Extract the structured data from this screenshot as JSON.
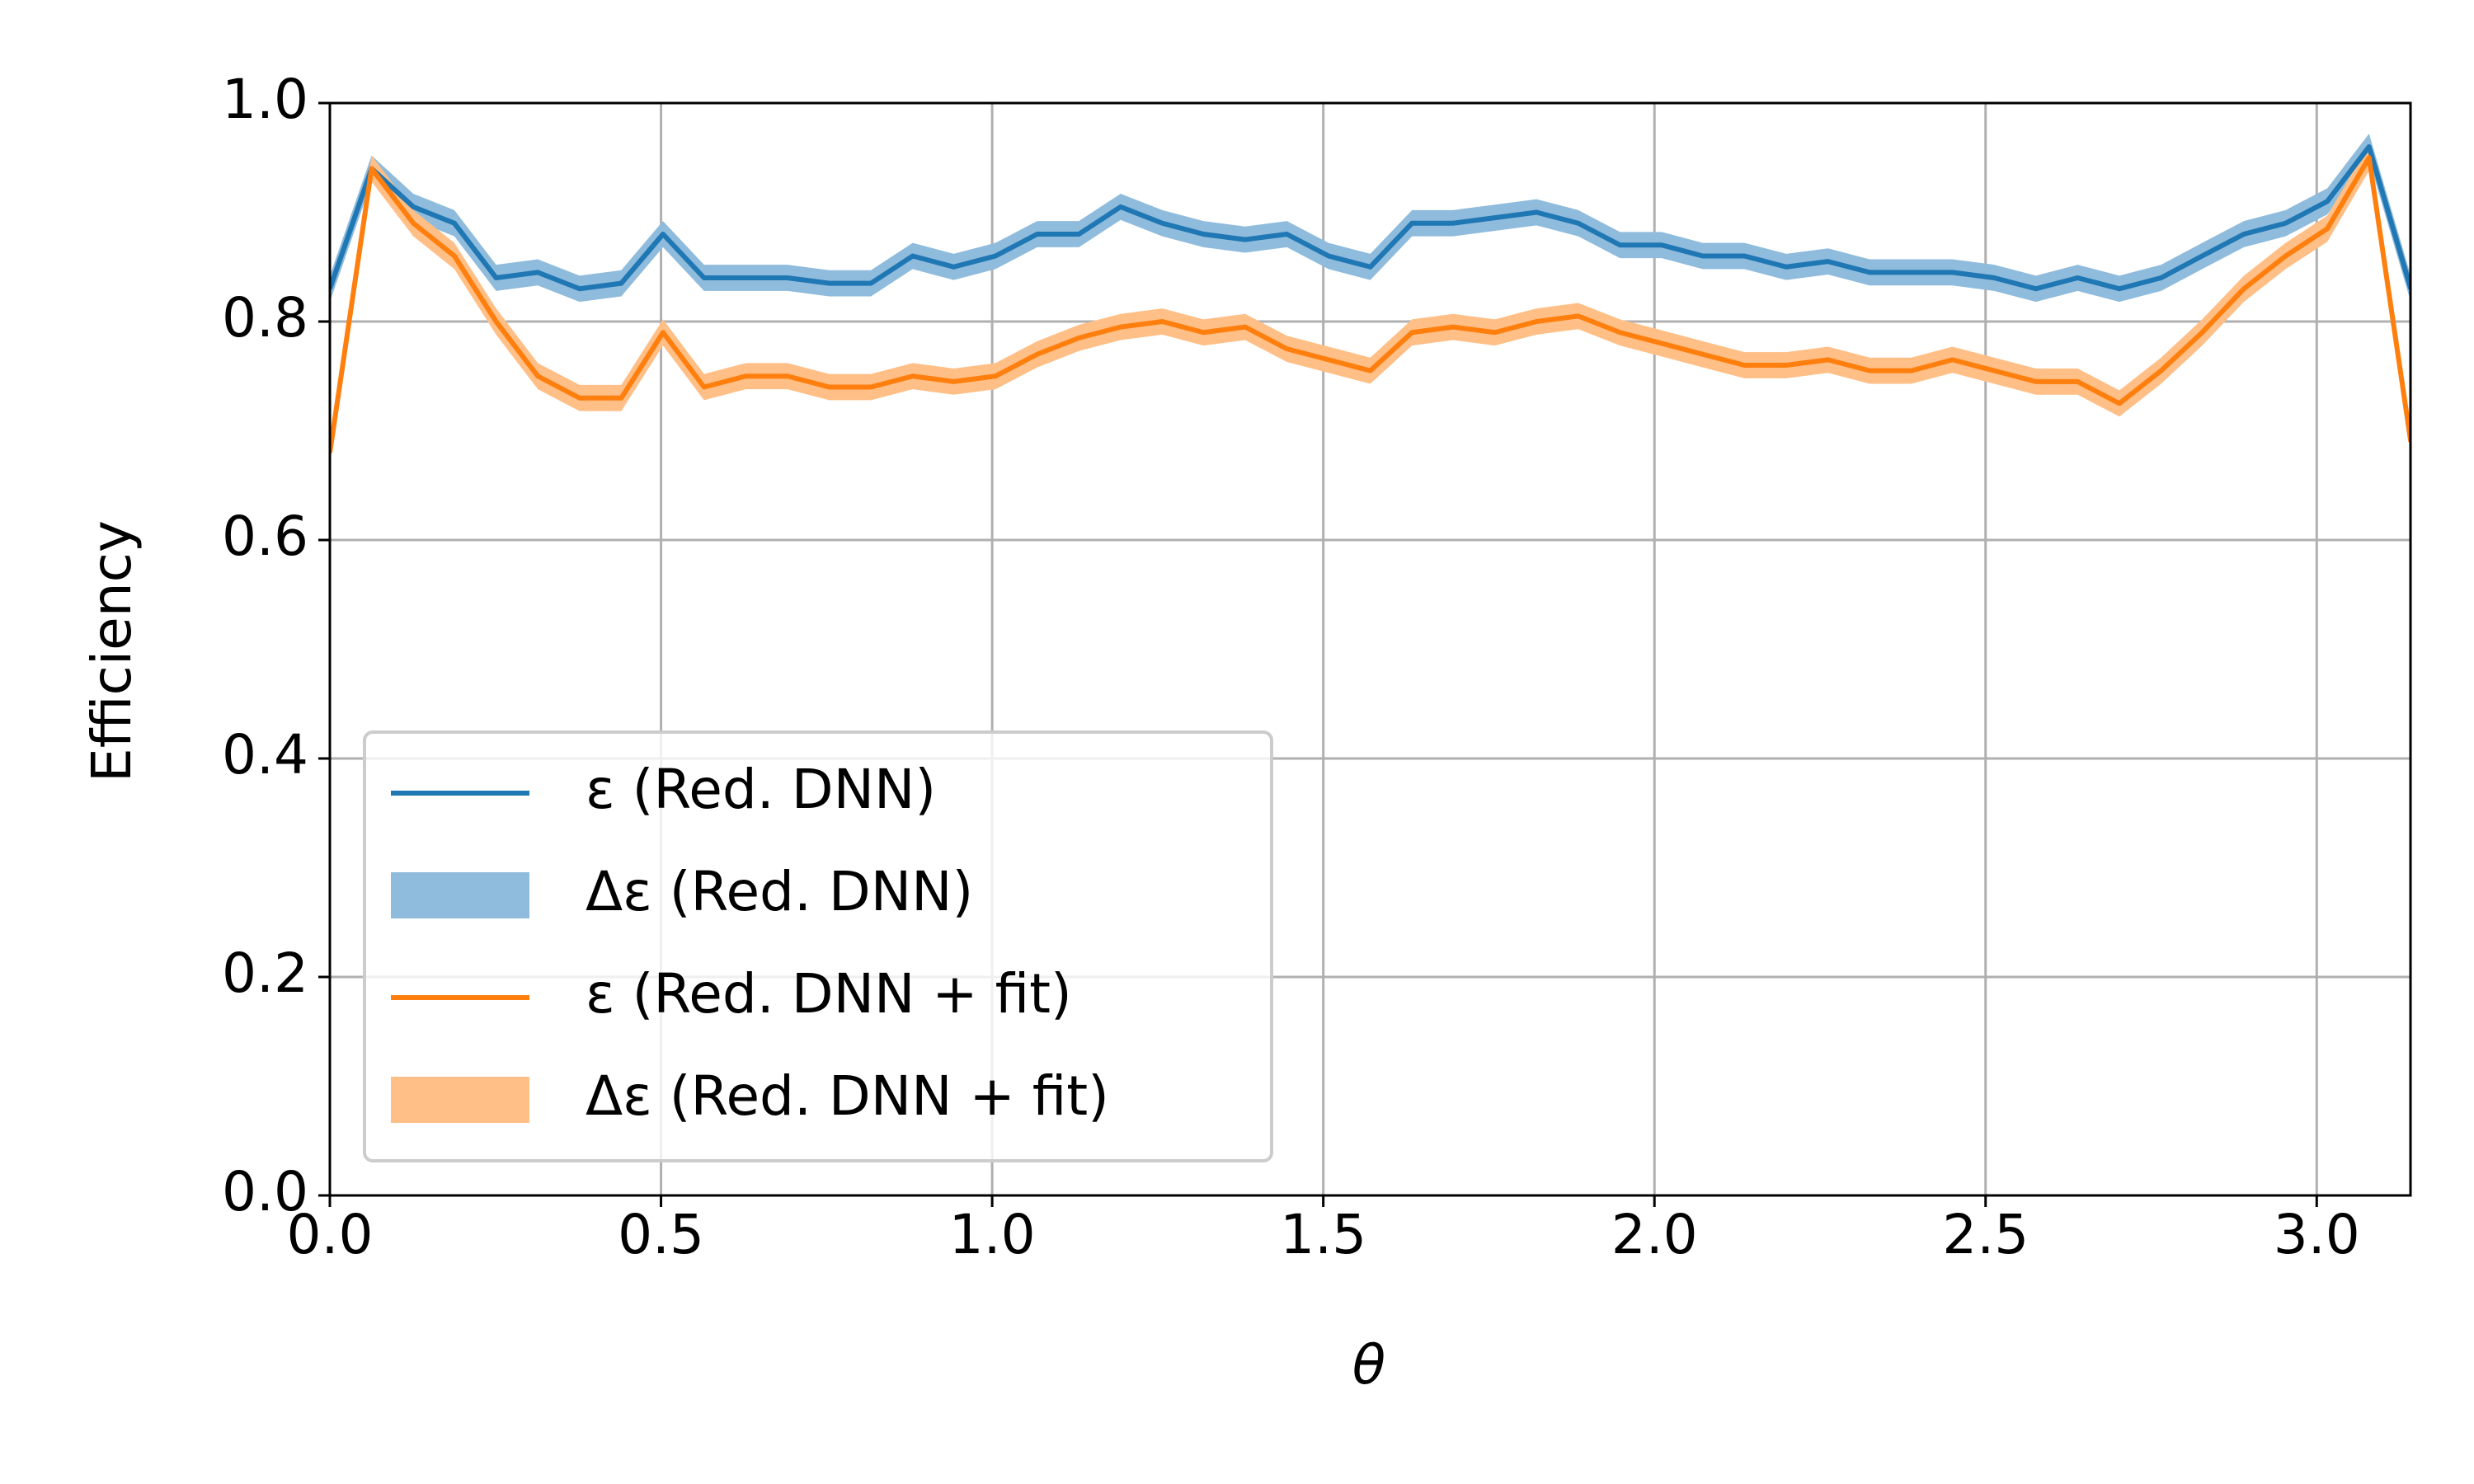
{
  "chart_data": {
    "type": "line",
    "xlabel": "θ",
    "ylabel": "Efficiency",
    "x": [
      0,
      0.063,
      0.126,
      0.188,
      0.251,
      0.314,
      0.377,
      0.44,
      0.503,
      0.565,
      0.628,
      0.691,
      0.754,
      0.817,
      0.88,
      0.942,
      1.005,
      1.068,
      1.131,
      1.194,
      1.257,
      1.319,
      1.382,
      1.445,
      1.508,
      1.571,
      1.634,
      1.696,
      1.759,
      1.822,
      1.885,
      1.948,
      2.011,
      2.073,
      2.136,
      2.199,
      2.262,
      2.325,
      2.388,
      2.45,
      2.513,
      2.576,
      2.639,
      2.702,
      2.765,
      2.827,
      2.89,
      2.953,
      3.016,
      3.079,
      3.142
    ],
    "series": [
      {
        "name": "ε (Red. DNN)",
        "color": "#1f77b4",
        "band_name": "Δε (Red. DNN)",
        "band_color": "#8fbbdc",
        "error": 0.012,
        "values": [
          0.83,
          0.94,
          0.905,
          0.89,
          0.84,
          0.845,
          0.83,
          0.835,
          0.88,
          0.84,
          0.84,
          0.84,
          0.835,
          0.835,
          0.86,
          0.85,
          0.86,
          0.88,
          0.88,
          0.905,
          0.89,
          0.88,
          0.875,
          0.88,
          0.86,
          0.85,
          0.89,
          0.89,
          0.895,
          0.9,
          0.89,
          0.87,
          0.87,
          0.86,
          0.86,
          0.85,
          0.855,
          0.845,
          0.845,
          0.845,
          0.84,
          0.83,
          0.84,
          0.83,
          0.84,
          0.86,
          0.88,
          0.89,
          0.91,
          0.96,
          0.83
        ]
      },
      {
        "name": "ε (Red. DNN + fit)",
        "color": "#ff7f0e",
        "band_name": "Δε (Red. DNN + fit)",
        "band_color": "#ffbf86",
        "error": 0.012,
        "values": [
          0.68,
          0.94,
          0.89,
          0.86,
          0.8,
          0.75,
          0.73,
          0.73,
          0.79,
          0.74,
          0.75,
          0.75,
          0.74,
          0.74,
          0.75,
          0.745,
          0.75,
          0.77,
          0.785,
          0.795,
          0.8,
          0.79,
          0.795,
          0.775,
          0.765,
          0.755,
          0.79,
          0.795,
          0.79,
          0.8,
          0.805,
          0.79,
          0.78,
          0.77,
          0.76,
          0.76,
          0.765,
          0.755,
          0.755,
          0.765,
          0.755,
          0.745,
          0.745,
          0.725,
          0.755,
          0.79,
          0.83,
          0.86,
          0.885,
          0.95,
          0.69
        ]
      }
    ],
    "xlim": [
      0,
      3.1416
    ],
    "ylim": [
      0,
      1
    ],
    "xticks": [
      {
        "value": 0,
        "label": "0.0"
      },
      0.5,
      {
        "value": 1,
        "label": "1.0"
      },
      1.5,
      {
        "value": 2,
        "label": "2.0"
      },
      2.5,
      {
        "value": 3,
        "label": "3.0"
      }
    ],
    "yticks": [
      {
        "value": 0,
        "label": "0.0"
      },
      0.2,
      0.4,
      0.6,
      0.8,
      {
        "value": 1,
        "label": "1.0"
      }
    ],
    "grid": true,
    "legend": "lower left"
  }
}
